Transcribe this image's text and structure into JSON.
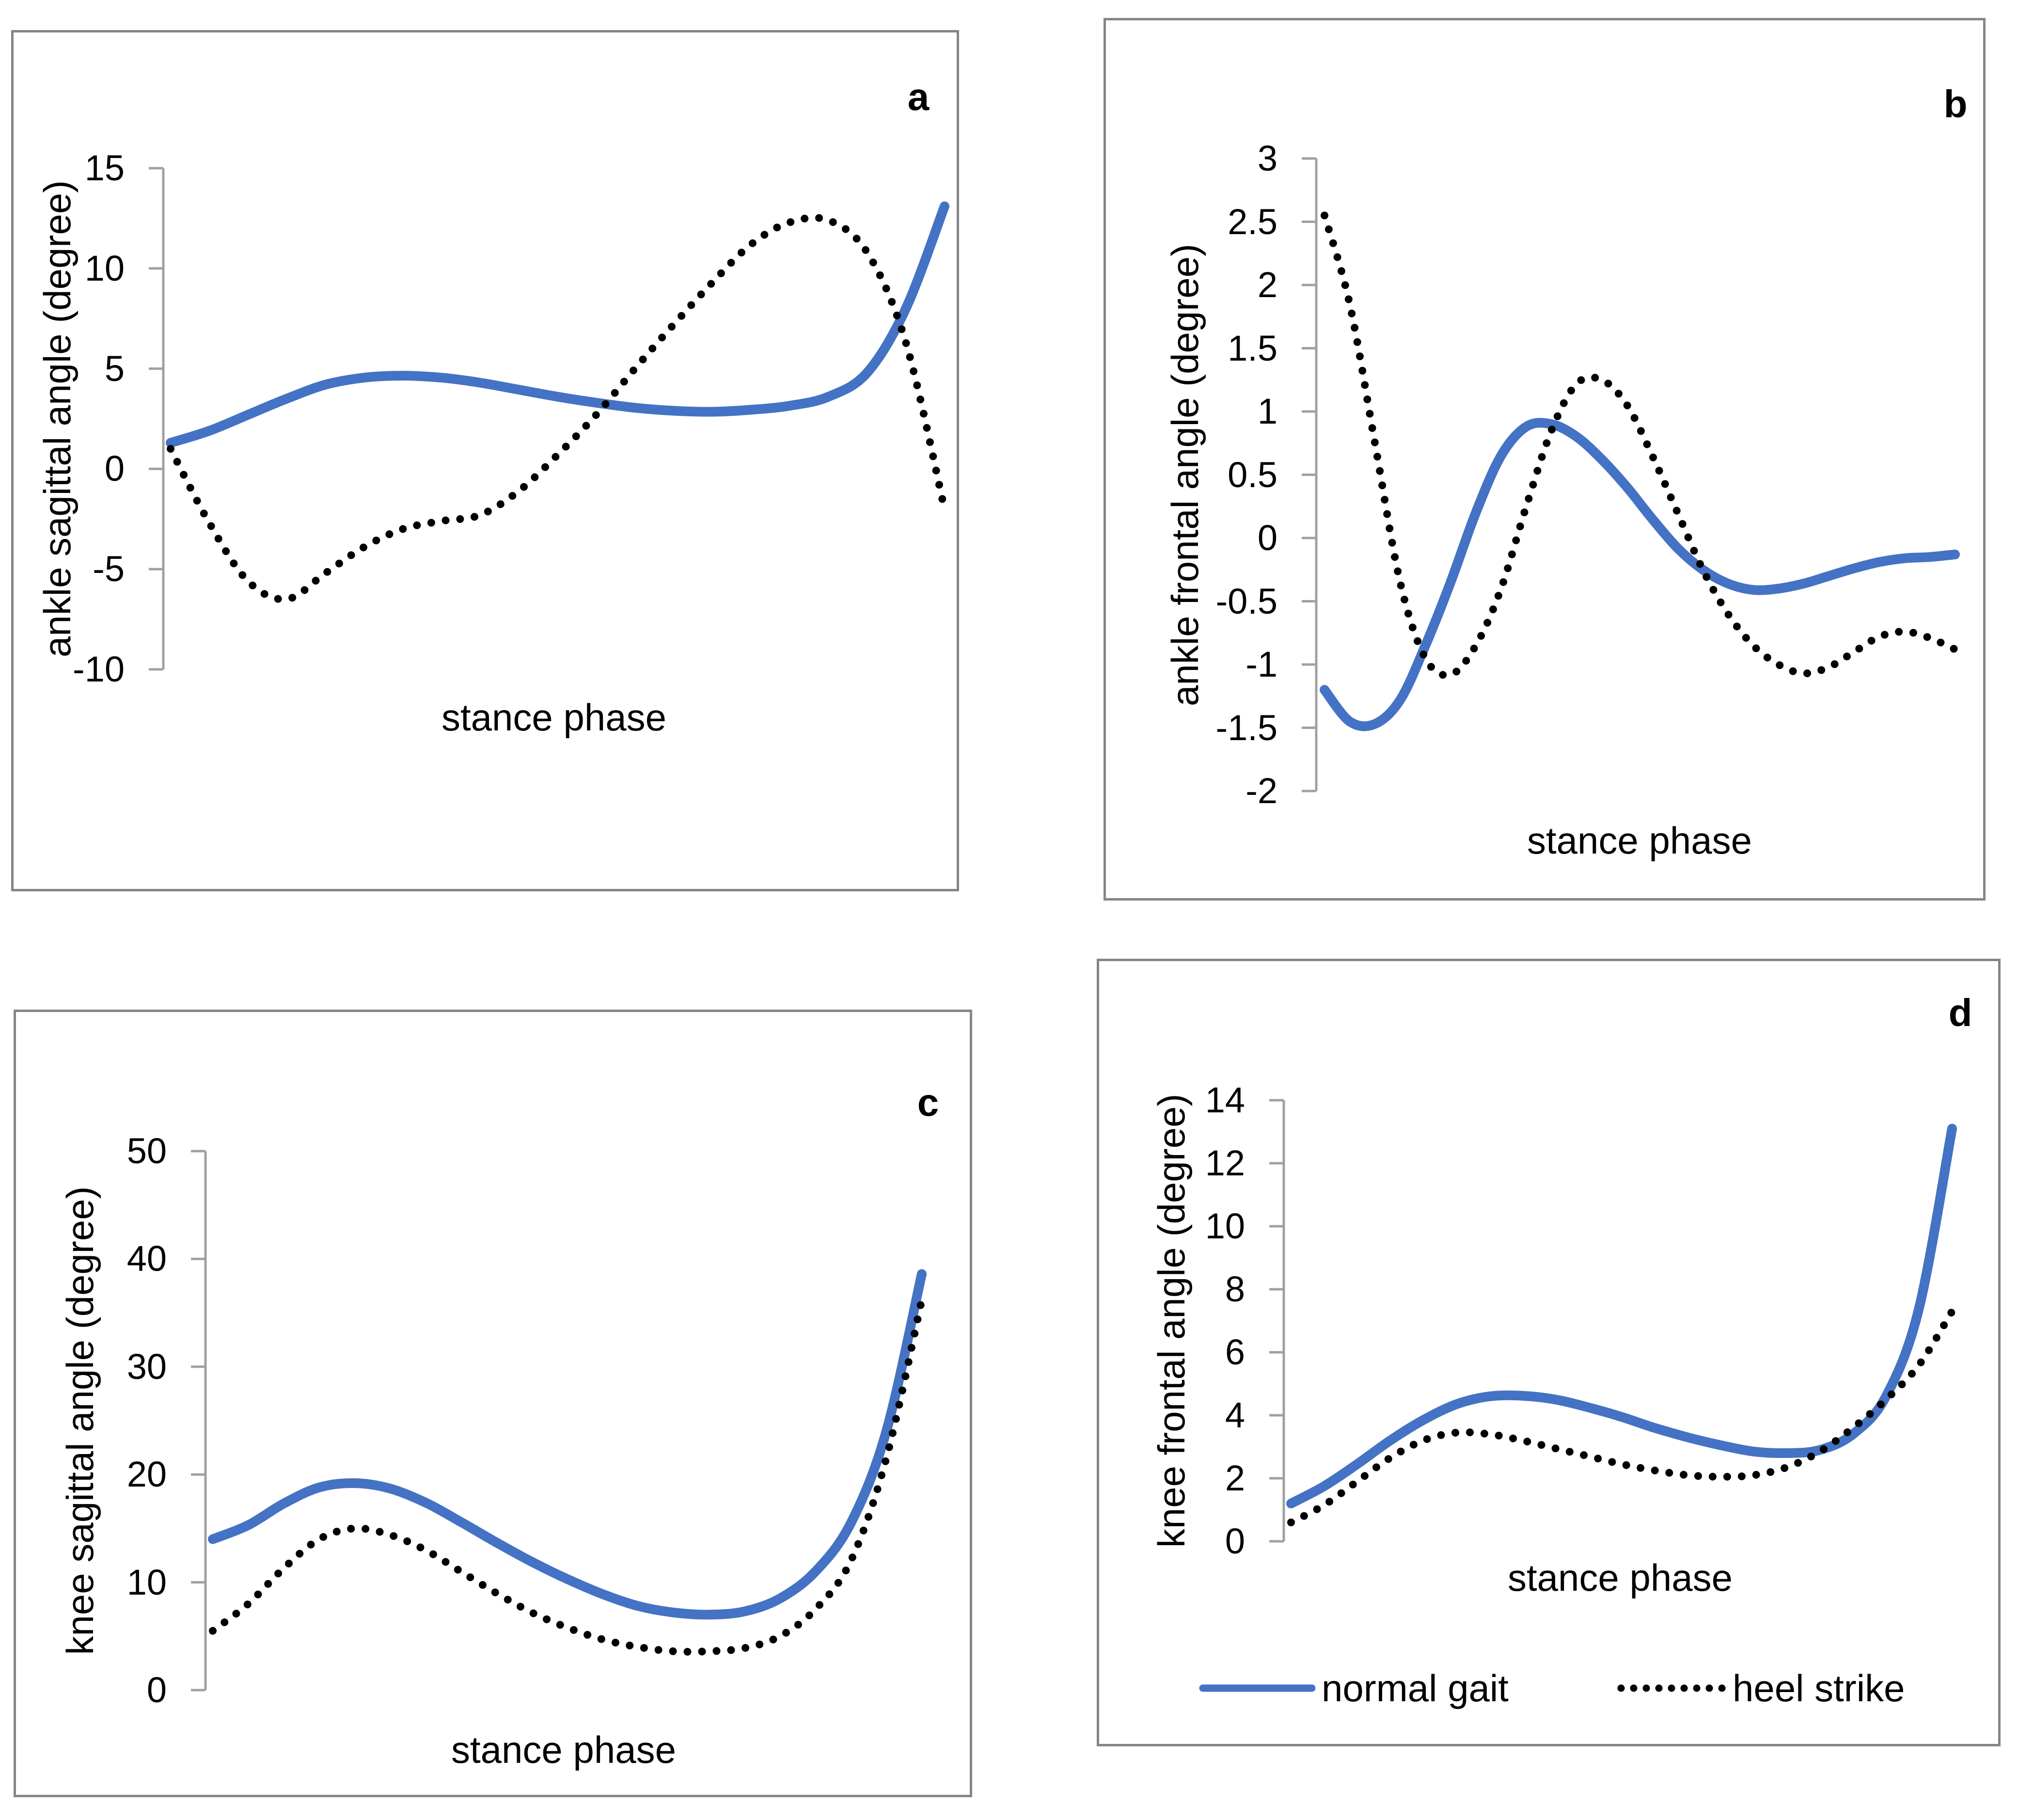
{
  "figure": {
    "background": "#ffffff",
    "panel_border_color": "#858585",
    "axis_line_color": "#a0a0a0",
    "accent_blue": "#4472C4",
    "dotted_black": "#000000"
  },
  "legend": {
    "items": [
      {
        "label": "normal gait",
        "swatch": "solid-blue-line"
      },
      {
        "label": "heel strike",
        "swatch": "dotted-black-line"
      }
    ]
  },
  "chart_data": [
    {
      "panel_label": "a",
      "type": "line",
      "title": "",
      "xlabel": "stance phase",
      "ylabel": "ankle sagittal angle (degree)",
      "ylim": [
        -10,
        15
      ],
      "yticks": [
        15,
        10,
        5,
        0,
        -5,
        -10
      ],
      "x_note": "unlabeled x axis, curves span full stance phase (0-100%), points evenly spaced",
      "grid": false,
      "series": [
        {
          "name": "normal gait",
          "style": "solid",
          "color": "#4472C4",
          "values": [
            1.3,
            1.9,
            2.7,
            3.5,
            4.2,
            4.55,
            4.65,
            4.55,
            4.3,
            3.95,
            3.6,
            3.3,
            3.05,
            2.9,
            2.85,
            2.95,
            3.15,
            3.6,
            4.8,
            8.0,
            13.1
          ]
        },
        {
          "name": "heel strike",
          "style": "dotted",
          "color": "#000000",
          "values": [
            1.0,
            -2.7,
            -5.6,
            -6.5,
            -5.2,
            -3.9,
            -3.0,
            -2.6,
            -2.3,
            -1.1,
            0.7,
            2.7,
            5.0,
            7.2,
            9.3,
            11.2,
            12.3,
            12.4,
            10.8,
            6.3,
            -2.0
          ]
        }
      ]
    },
    {
      "panel_label": "b",
      "type": "line",
      "title": "",
      "xlabel": "stance phase",
      "ylabel": "ankle frontal angle (degree)",
      "ylim": [
        -2,
        3
      ],
      "yticks": [
        3,
        2.5,
        2,
        1.5,
        1,
        0.5,
        0,
        -0.5,
        -1,
        -1.5,
        -2
      ],
      "x_note": "unlabeled x axis, curves span full stance phase (0-100%), points evenly spaced",
      "grid": false,
      "series": [
        {
          "name": "normal gait",
          "style": "solid",
          "color": "#4472C4",
          "values": [
            -1.2,
            -1.45,
            -1.47,
            -1.28,
            -0.85,
            -0.35,
            0.2,
            0.65,
            0.88,
            0.9,
            0.8,
            0.62,
            0.4,
            0.15,
            -0.08,
            -0.25,
            -0.36,
            -0.41,
            -0.4,
            -0.36,
            -0.3,
            -0.24,
            -0.19,
            -0.16,
            -0.15,
            -0.13
          ]
        },
        {
          "name": "heel strike",
          "style": "dotted",
          "color": "#000000",
          "values": [
            2.55,
            1.85,
            0.75,
            -0.35,
            -0.95,
            -1.08,
            -0.85,
            -0.4,
            0.25,
            0.85,
            1.22,
            1.25,
            1.05,
            0.65,
            0.2,
            -0.25,
            -0.6,
            -0.85,
            -1.0,
            -1.07,
            -1.02,
            -0.9,
            -0.78,
            -0.74,
            -0.79,
            -0.88
          ]
        }
      ]
    },
    {
      "panel_label": "c",
      "type": "line",
      "title": "",
      "xlabel": "stance phase",
      "ylabel": "knee sagittal angle (degree)",
      "ylim": [
        0,
        50
      ],
      "yticks": [
        50,
        40,
        30,
        20,
        10,
        0
      ],
      "x_note": "unlabeled x axis, curves span full stance phase (0-100%), points evenly spaced",
      "grid": false,
      "series": [
        {
          "name": "normal gait",
          "style": "solid",
          "color": "#4472C4",
          "values": [
            14.0,
            15.3,
            17.3,
            18.8,
            19.2,
            18.7,
            17.4,
            15.6,
            13.7,
            11.9,
            10.3,
            8.9,
            7.8,
            7.2,
            7.0,
            7.3,
            8.5,
            11.0,
            15.5,
            24.0,
            38.6
          ]
        },
        {
          "name": "heel strike",
          "style": "dotted",
          "color": "#000000",
          "values": [
            5.5,
            8.0,
            11.3,
            14.0,
            15.0,
            14.4,
            13.0,
            11.0,
            9.0,
            7.2,
            5.8,
            4.7,
            4.0,
            3.6,
            3.6,
            3.9,
            5.0,
            7.5,
            12.0,
            21.5,
            36.2
          ]
        }
      ]
    },
    {
      "panel_label": "d",
      "type": "line",
      "title": "",
      "xlabel": "stance phase",
      "ylabel": "knee frontal angle (degree)",
      "ylim": [
        0,
        14
      ],
      "yticks": [
        14,
        12,
        10,
        8,
        6,
        4,
        2,
        0
      ],
      "x_note": "unlabeled x axis, curves span full stance phase (0-100%), points evenly spaced",
      "legend_shown": true,
      "grid": false,
      "series": [
        {
          "name": "normal gait",
          "style": "solid",
          "color": "#4472C4",
          "values": [
            1.2,
            1.75,
            2.45,
            3.2,
            3.85,
            4.35,
            4.6,
            4.62,
            4.5,
            4.25,
            3.95,
            3.6,
            3.3,
            3.05,
            2.85,
            2.8,
            2.9,
            3.4,
            4.6,
            7.4,
            13.1
          ]
        },
        {
          "name": "heel strike",
          "style": "dotted",
          "color": "#000000",
          "values": [
            0.6,
            1.15,
            1.9,
            2.65,
            3.2,
            3.45,
            3.4,
            3.2,
            2.95,
            2.7,
            2.45,
            2.25,
            2.1,
            2.05,
            2.1,
            2.35,
            2.85,
            3.6,
            4.5,
            5.6,
            7.3
          ]
        }
      ]
    }
  ]
}
